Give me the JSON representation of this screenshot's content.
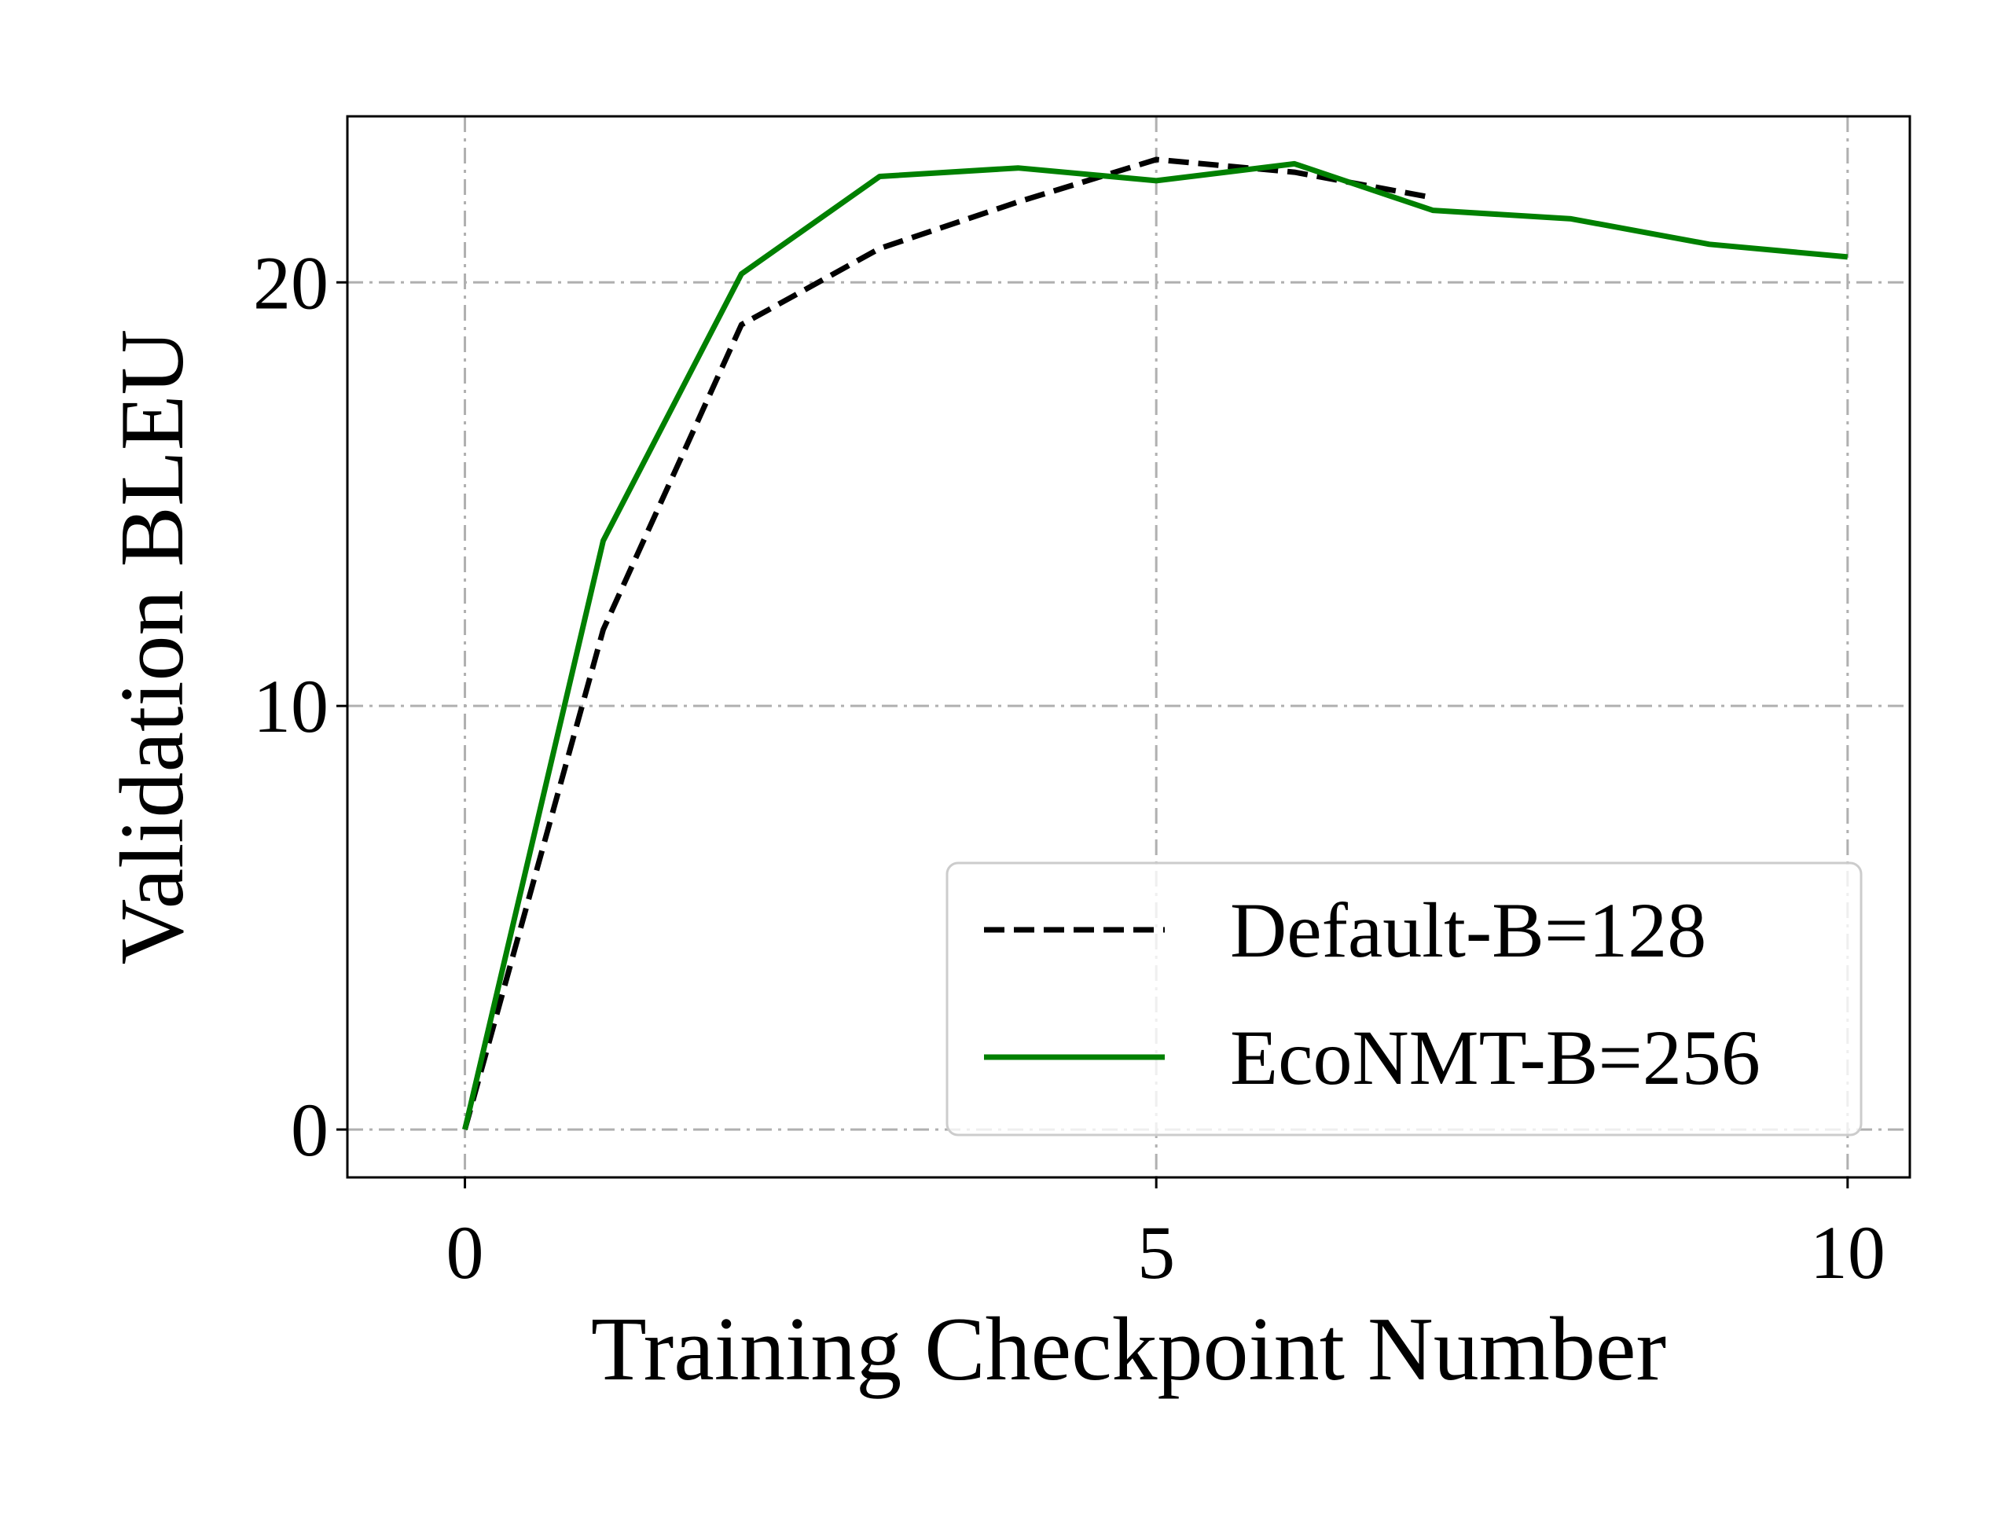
{
  "chart_data": {
    "type": "line",
    "title": "",
    "xlabel": "Training Checkpoint Number",
    "ylabel": "Validation BLEU",
    "xlim": [
      -0.85,
      10.45
    ],
    "ylim": [
      -1.13,
      23.92
    ],
    "xticks": [
      0,
      5,
      10
    ],
    "yticks": [
      0,
      10,
      20
    ],
    "xtick_labels": [
      "0",
      "5",
      "10"
    ],
    "ytick_labels": [
      "0",
      "10",
      "20"
    ],
    "grid": true,
    "legend_position": "lower-right",
    "series": [
      {
        "name": "Default-B=128",
        "color": "#000000",
        "style": "dashed",
        "x": [
          0,
          1,
          2,
          3,
          4,
          5,
          6,
          7
        ],
        "y": [
          0.0,
          11.8,
          19.0,
          20.8,
          21.9,
          22.9,
          22.6,
          22.0
        ]
      },
      {
        "name": "EcoNMT-B=256",
        "color": "#008000",
        "style": "solid",
        "x": [
          0,
          1,
          2,
          3,
          4,
          5,
          6,
          7,
          8,
          9,
          10
        ],
        "y": [
          0.0,
          13.9,
          20.2,
          22.5,
          22.7,
          22.4,
          22.8,
          21.7,
          21.5,
          20.9,
          20.6
        ]
      }
    ]
  }
}
